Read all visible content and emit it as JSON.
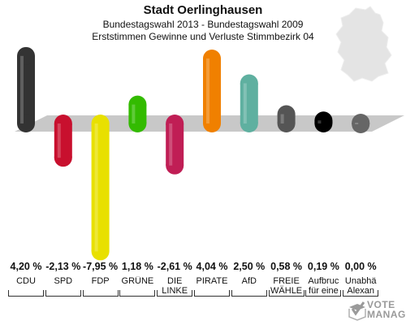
{
  "header": {
    "title": "Stadt Oerlinghausen",
    "subtitle1": "Bundestagswahl 2013 - Bundestagswahl 2009",
    "subtitle2": "Erststimmen Gewinne und Verluste Stimmbezirk 04"
  },
  "logo": {
    "line1": "VOTE",
    "line2": "MANAGER"
  },
  "colors": {
    "baseline": "#c8c8c8",
    "background": "#ffffff"
  },
  "chart_data": {
    "type": "bar",
    "categories": [
      [
        "CDU"
      ],
      [
        "SPD"
      ],
      [
        "FDP"
      ],
      [
        "GRÜNE"
      ],
      [
        "DIE",
        "LINKE"
      ],
      [
        "PIRATE"
      ],
      [
        "AfD"
      ],
      [
        "FREIE",
        "WÄHLE"
      ],
      [
        "Aufbruc",
        "für eine"
      ],
      [
        "Unabhä",
        "Alexan"
      ]
    ],
    "values": [
      4.2,
      -2.13,
      -7.95,
      1.18,
      -2.61,
      4.04,
      2.5,
      0.58,
      0.19,
      0.0
    ],
    "value_labels": [
      "4,20 %",
      "-2,13 %",
      "-7,95 %",
      "1,18 %",
      "-2,61 %",
      "4,04 %",
      "2,50 %",
      "0,58 %",
      "0,19 %",
      "0,00 %"
    ],
    "colors": [
      "#333333",
      "#c8102e",
      "#e8e000",
      "#33bb00",
      "#c01e55",
      "#f08000",
      "#5fb0a0",
      "#555555",
      "#000000",
      "#666666"
    ],
    "ylim": [
      -8.5,
      4.5
    ]
  }
}
